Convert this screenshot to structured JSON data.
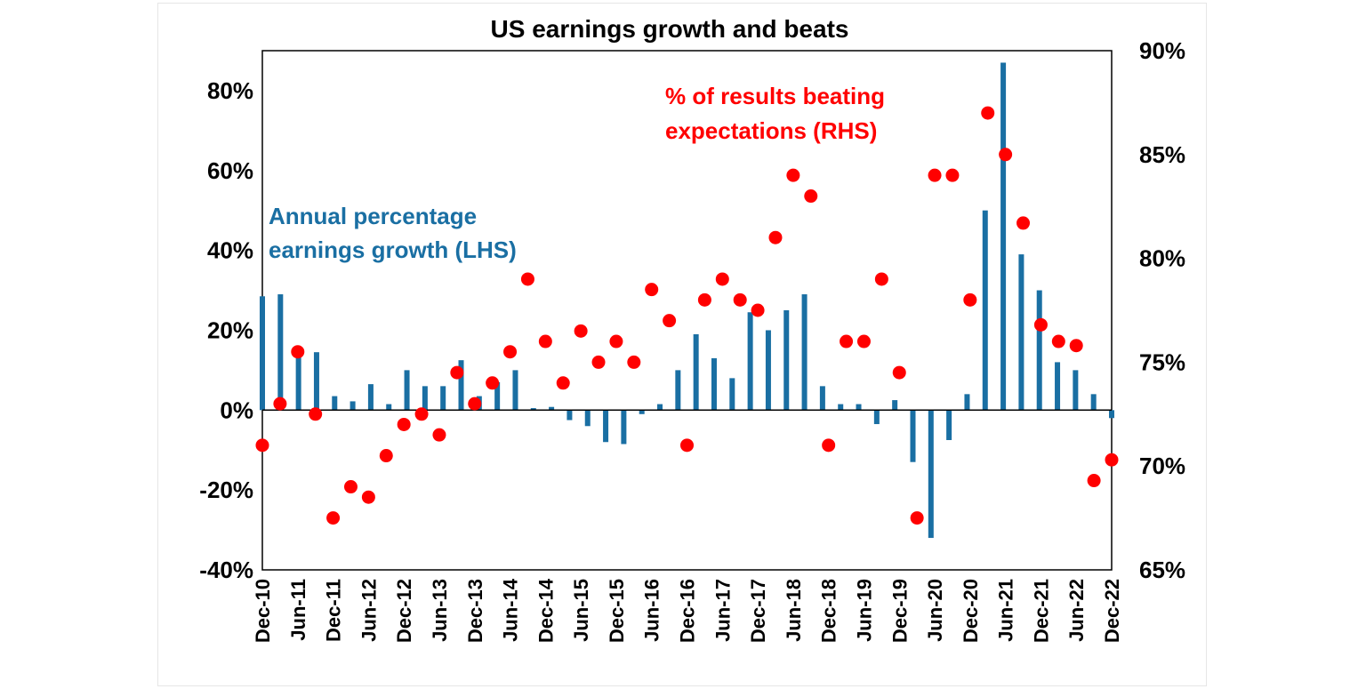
{
  "chart_data": {
    "type": "bar+scatter",
    "title": "US earnings growth and beats",
    "x_labels": [
      "Dec-10",
      "Jun-11",
      "Dec-11",
      "Jun-12",
      "Dec-12",
      "Jun-13",
      "Dec-13",
      "Jun-14",
      "Dec-14",
      "Jun-15",
      "Dec-15",
      "Jun-16",
      "Dec-16",
      "Jun-17",
      "Dec-17",
      "Jun-18",
      "Dec-18",
      "Jun-19",
      "Dec-19",
      "Jun-20",
      "Dec-20",
      "Jun-21",
      "Dec-21",
      "Jun-22",
      "Dec-22"
    ],
    "left_axis": {
      "ylim": [
        -40,
        90
      ],
      "ticks": [
        80,
        60,
        40,
        20,
        0,
        -20,
        -40
      ],
      "tick_labels": [
        "80%",
        "60%",
        "40%",
        "20%",
        "0%",
        "-20%",
        "-40%"
      ]
    },
    "right_axis": {
      "ylim": [
        65,
        90
      ],
      "ticks": [
        90,
        85,
        80,
        75,
        70,
        65
      ],
      "tick_labels": [
        "90%",
        "85%",
        "80%",
        "75%",
        "70%",
        "65%"
      ]
    },
    "series": [
      {
        "name": "Annual percentage earnings growth (LHS)",
        "type": "bar",
        "axis": "left",
        "color": "#1a6fa3",
        "values": [
          28.5,
          29,
          14,
          14.5,
          3.5,
          2.2,
          6.5,
          1.5,
          10,
          6,
          6,
          12.5,
          3.5,
          7,
          10,
          0.5,
          0.8,
          -2.5,
          -4,
          -8,
          -8.5,
          -1,
          1.5,
          10,
          19,
          13,
          8,
          24.5,
          20,
          25,
          29,
          6,
          1.5,
          1.5,
          -3.5,
          2.5,
          -13,
          -32,
          -7.5,
          4,
          50,
          87,
          39,
          30,
          12,
          10,
          4,
          -2
        ]
      },
      {
        "name": "% of results beating expectations (RHS)",
        "type": "scatter",
        "axis": "right",
        "color": "#ff0000",
        "values": [
          71,
          73,
          75.5,
          72.5,
          67.5,
          69,
          68.5,
          70.5,
          72,
          72.5,
          71.5,
          74.5,
          73,
          74,
          75.5,
          79,
          76,
          74,
          76.5,
          75,
          76,
          75,
          78.5,
          77,
          71,
          78,
          79,
          78,
          77.5,
          81,
          84,
          83,
          71,
          76,
          76,
          79,
          74.5,
          67.5,
          84,
          84,
          78,
          87,
          85,
          81.7,
          76.8,
          76,
          75.8,
          69.3,
          70.3
        ]
      }
    ],
    "annotations": {
      "bars_label_line1": "Annual percentage",
      "bars_label_line2": "earnings growth (LHS)",
      "dots_label_line1": "% of results beating",
      "dots_label_line2": "expectations (RHS)"
    }
  }
}
